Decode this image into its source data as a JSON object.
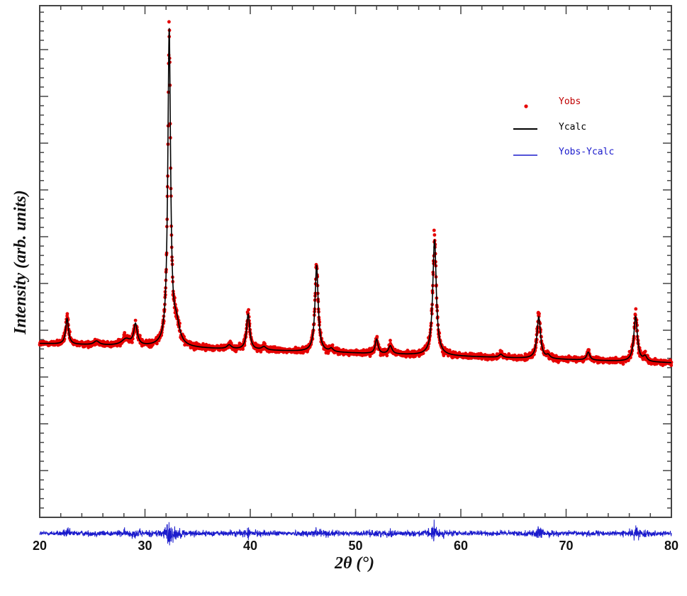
{
  "chart_data": {
    "type": "line",
    "xlabel": "2θ (°)",
    "ylabel": "Intensity (arb. units)",
    "xlim": [
      20,
      80
    ],
    "x_ticks": [
      20,
      30,
      40,
      50,
      60,
      70,
      80
    ],
    "x_tick_labels": [
      "20",
      "30",
      "40",
      "50",
      "60",
      "70",
      "80"
    ],
    "y_tick_labels_shown": false,
    "grid": false,
    "legend_position": "top-right",
    "background_sloping_from": [
      20,
      0.06
    ],
    "background_sloping_to": [
      80,
      0.0
    ],
    "difference_offset": -0.53,
    "peaks": [
      {
        "x": 22.6,
        "height": 0.08,
        "width": 0.16
      },
      {
        "x": 25.4,
        "height": 0.012,
        "width": 0.3
      },
      {
        "x": 28.2,
        "height": 0.02,
        "width": 0.5
      },
      {
        "x": 29.1,
        "height": 0.065,
        "width": 0.2
      },
      {
        "x": 32.3,
        "height": 0.98,
        "width": 0.16
      },
      {
        "x": 33.0,
        "height": 0.06,
        "width": 0.35
      },
      {
        "x": 38.0,
        "height": 0.012,
        "width": 0.25
      },
      {
        "x": 39.8,
        "height": 0.11,
        "width": 0.18
      },
      {
        "x": 41.3,
        "height": 0.01,
        "width": 0.25
      },
      {
        "x": 46.3,
        "height": 0.27,
        "width": 0.18
      },
      {
        "x": 47.7,
        "height": 0.01,
        "width": 0.2
      },
      {
        "x": 52.0,
        "height": 0.045,
        "width": 0.16
      },
      {
        "x": 53.3,
        "height": 0.025,
        "width": 0.2
      },
      {
        "x": 57.5,
        "height": 0.36,
        "width": 0.2
      },
      {
        "x": 63.8,
        "height": 0.01,
        "width": 0.2
      },
      {
        "x": 67.4,
        "height": 0.13,
        "width": 0.2
      },
      {
        "x": 68.3,
        "height": 0.01,
        "width": 0.2
      },
      {
        "x": 72.1,
        "height": 0.025,
        "width": 0.18
      },
      {
        "x": 76.6,
        "height": 0.14,
        "width": 0.2
      },
      {
        "x": 77.5,
        "height": 0.015,
        "width": 0.2
      }
    ],
    "series": [
      {
        "name": "Yobs",
        "style": "points",
        "color": "#e60000"
      },
      {
        "name": "Ycalc",
        "style": "line",
        "color": "#000000"
      },
      {
        "name": "Yobs-Ycalc",
        "style": "line",
        "color": "#1a1acc"
      }
    ]
  }
}
